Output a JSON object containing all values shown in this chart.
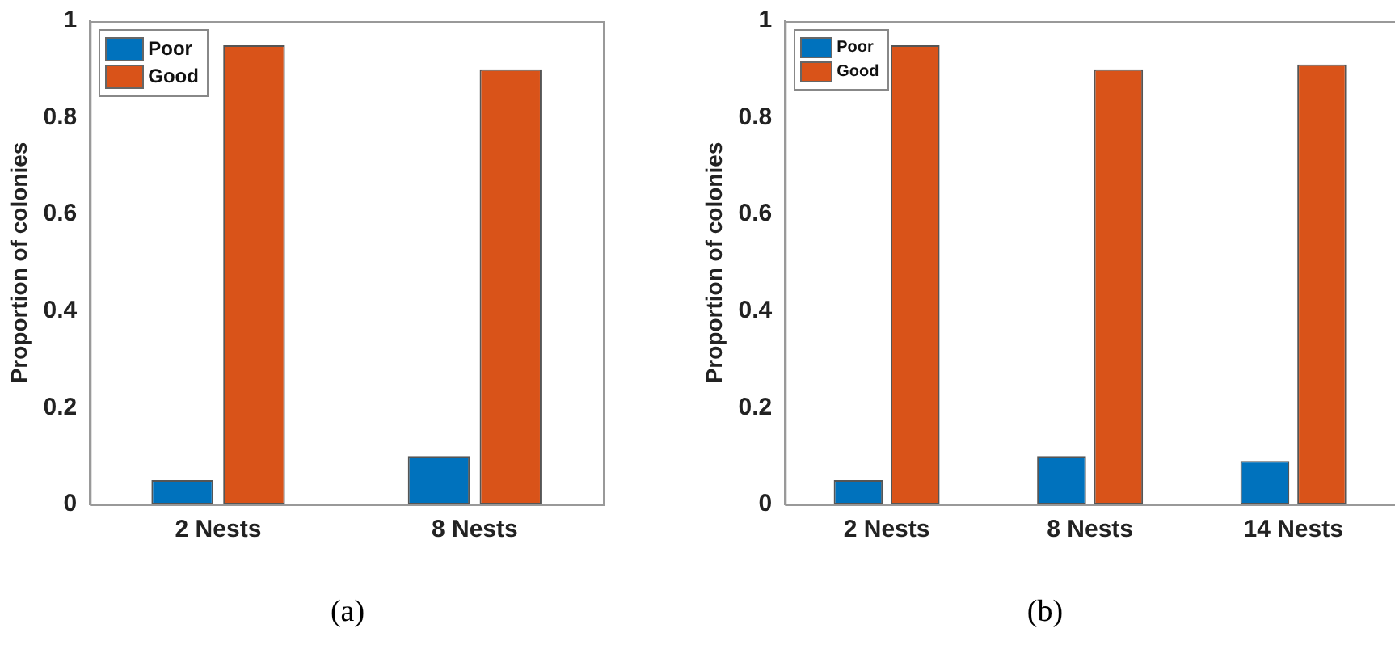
{
  "chart_data": [
    {
      "type": "bar",
      "categories": [
        "2 Nests",
        "8 Nests"
      ],
      "ylabel": "Proportion of colonies",
      "ylim": [
        0,
        1
      ],
      "yticks": [
        0,
        0.2,
        0.4,
        0.6,
        0.8,
        1
      ],
      "legend": "top left",
      "annotations": [
        "(a)"
      ],
      "series": [
        {
          "name": "Poor",
          "color": "#0072bd",
          "values": [
            0.05,
            0.1
          ]
        },
        {
          "name": "Good",
          "color": "#d95319",
          "values": [
            0.95,
            0.9
          ]
        }
      ]
    },
    {
      "type": "bar",
      "categories": [
        "2 Nests",
        "8 Nests",
        "14 Nests"
      ],
      "ylabel": "Proportion of colonies",
      "ylim": [
        0,
        1
      ],
      "yticks": [
        0,
        0.2,
        0.4,
        0.6,
        0.8,
        1
      ],
      "legend": "top left",
      "annotations": [
        "(b)"
      ],
      "series": [
        {
          "name": "Poor",
          "color": "#0072bd",
          "values": [
            0.05,
            0.1,
            0.09
          ]
        },
        {
          "name": "Good",
          "color": "#d95319",
          "values": [
            0.95,
            0.9,
            0.91
          ]
        }
      ]
    }
  ]
}
